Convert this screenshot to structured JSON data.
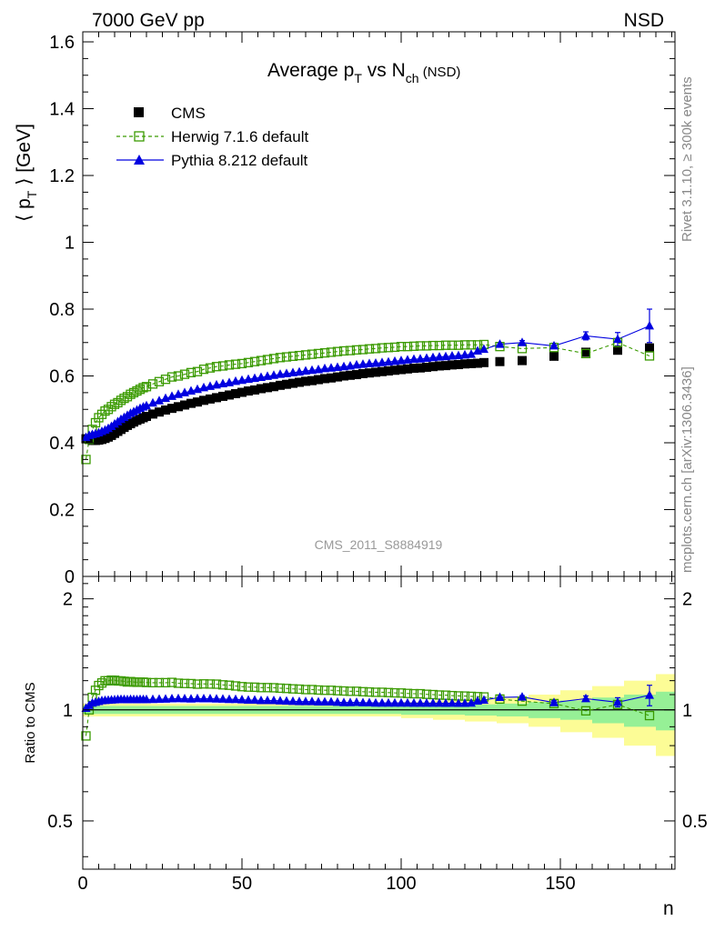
{
  "header": {
    "beam": "7000 GeV pp",
    "process": "NSD"
  },
  "side_labels": {
    "rivet": "Rivet 3.1.10, ≥ 300k events",
    "mcplots": "mcplots.cern.ch [arXiv:1306.3436]"
  },
  "analysis_id": "CMS_2011_S8884919",
  "colors": {
    "cms": "#000000",
    "herwig": "#3a9a00",
    "pythia": "#0000e0",
    "band_yellow": "#fcfc96",
    "band_green": "#96f096"
  },
  "chart_data": [
    {
      "type": "scatter",
      "title": "Average p_T vs N_ch (NSD)",
      "title_parts": {
        "pre": "Average p",
        "sub1": "T",
        "mid": " vs N",
        "sub2": "ch",
        "post": " (NSD)"
      },
      "ylabel": "⟨ p_T ⟩ [GeV]",
      "ylabel_parts": {
        "pre": "⟨ p",
        "sub": "T",
        "post": " ⟩ [GeV]"
      },
      "xlim": [
        0,
        186
      ],
      "ylim": [
        0,
        1.63
      ],
      "yticks": [
        0,
        0.2,
        0.4,
        0.6,
        0.8,
        1,
        1.2,
        1.4,
        1.6
      ],
      "ytick_labels": [
        "0",
        "0.2",
        "0.4",
        "0.6",
        "0.8",
        "1",
        "1.2",
        "1.4",
        "1.6"
      ],
      "legend": [
        "CMS",
        "Herwig 7.1.6 default",
        "Pythia 8.212 default"
      ],
      "series": [
        {
          "name": "CMS",
          "x": [
            1,
            2,
            3,
            4,
            5,
            6,
            7,
            8,
            9,
            10,
            11,
            12,
            13,
            14,
            15,
            16,
            17,
            18,
            19,
            20,
            22,
            24,
            26,
            28,
            30,
            32,
            34,
            36,
            38,
            40,
            42,
            44,
            46,
            48,
            50,
            52,
            54,
            56,
            58,
            60,
            62,
            64,
            66,
            68,
            70,
            72,
            74,
            76,
            78,
            80,
            82,
            84,
            86,
            88,
            90,
            92,
            94,
            96,
            98,
            100,
            102,
            104,
            106,
            108,
            110,
            112,
            114,
            116,
            118,
            120,
            122,
            124,
            126,
            131,
            138,
            148,
            158,
            168,
            178
          ],
          "y": [
            0.412,
            0.41,
            0.407,
            0.407,
            0.408,
            0.41,
            0.413,
            0.417,
            0.422,
            0.428,
            0.434,
            0.44,
            0.446,
            0.452,
            0.457,
            0.462,
            0.467,
            0.471,
            0.475,
            0.479,
            0.486,
            0.492,
            0.498,
            0.503,
            0.508,
            0.513,
            0.518,
            0.522,
            0.527,
            0.531,
            0.535,
            0.539,
            0.543,
            0.547,
            0.551,
            0.555,
            0.558,
            0.562,
            0.565,
            0.568,
            0.572,
            0.575,
            0.578,
            0.581,
            0.584,
            0.586,
            0.589,
            0.592,
            0.594,
            0.597,
            0.6,
            0.602,
            0.604,
            0.607,
            0.609,
            0.611,
            0.613,
            0.615,
            0.617,
            0.619,
            0.621,
            0.623,
            0.624,
            0.626,
            0.628,
            0.63,
            0.631,
            0.633,
            0.634,
            0.636,
            0.637,
            0.638,
            0.64,
            0.643,
            0.646,
            0.659,
            0.671,
            0.677,
            0.684
          ]
        },
        {
          "name": "Herwig 7.1.6 default",
          "x": [
            1,
            2,
            3,
            4,
            5,
            6,
            7,
            8,
            9,
            10,
            11,
            12,
            13,
            14,
            15,
            16,
            17,
            18,
            19,
            20,
            22,
            24,
            26,
            28,
            30,
            32,
            34,
            36,
            38,
            40,
            42,
            44,
            46,
            48,
            50,
            52,
            54,
            56,
            58,
            60,
            62,
            64,
            66,
            68,
            70,
            72,
            74,
            76,
            78,
            80,
            82,
            84,
            86,
            88,
            90,
            92,
            94,
            96,
            98,
            100,
            102,
            104,
            106,
            108,
            110,
            112,
            114,
            116,
            118,
            120,
            122,
            124,
            126,
            131,
            138,
            148,
            158,
            168,
            178
          ],
          "y": [
            0.35,
            0.41,
            0.44,
            0.46,
            0.475,
            0.485,
            0.495,
            0.5,
            0.508,
            0.515,
            0.52,
            0.527,
            0.533,
            0.538,
            0.545,
            0.55,
            0.555,
            0.56,
            0.565,
            0.568,
            0.576,
            0.583,
            0.59,
            0.597,
            0.6,
            0.605,
            0.61,
            0.613,
            0.62,
            0.624,
            0.628,
            0.63,
            0.633,
            0.635,
            0.637,
            0.64,
            0.643,
            0.646,
            0.649,
            0.652,
            0.655,
            0.657,
            0.659,
            0.661,
            0.663,
            0.665,
            0.667,
            0.669,
            0.671,
            0.673,
            0.675,
            0.676,
            0.678,
            0.679,
            0.681,
            0.682,
            0.684,
            0.685,
            0.686,
            0.688,
            0.688,
            0.689,
            0.69,
            0.69,
            0.691,
            0.691,
            0.692,
            0.692,
            0.692,
            0.693,
            0.693,
            0.693,
            0.694,
            0.688,
            0.682,
            0.685,
            0.667,
            0.7,
            0.66
          ]
        },
        {
          "name": "Pythia 8.212 default",
          "x": [
            1,
            2,
            3,
            4,
            5,
            6,
            7,
            8,
            9,
            10,
            11,
            12,
            13,
            14,
            15,
            16,
            17,
            18,
            19,
            20,
            22,
            24,
            26,
            28,
            30,
            32,
            34,
            36,
            38,
            40,
            42,
            44,
            46,
            48,
            50,
            52,
            54,
            56,
            58,
            60,
            62,
            64,
            66,
            68,
            70,
            72,
            74,
            76,
            78,
            80,
            82,
            84,
            86,
            88,
            90,
            92,
            94,
            96,
            98,
            100,
            102,
            104,
            106,
            108,
            110,
            112,
            114,
            116,
            118,
            120,
            122,
            124,
            126,
            131,
            138,
            148,
            158,
            168,
            178
          ],
          "y": [
            0.416,
            0.422,
            0.425,
            0.427,
            0.43,
            0.434,
            0.438,
            0.443,
            0.449,
            0.456,
            0.463,
            0.47,
            0.476,
            0.482,
            0.488,
            0.493,
            0.498,
            0.503,
            0.507,
            0.511,
            0.519,
            0.526,
            0.533,
            0.539,
            0.545,
            0.55,
            0.555,
            0.56,
            0.565,
            0.569,
            0.573,
            0.577,
            0.58,
            0.584,
            0.587,
            0.59,
            0.593,
            0.596,
            0.599,
            0.602,
            0.605,
            0.607,
            0.61,
            0.612,
            0.615,
            0.617,
            0.619,
            0.622,
            0.624,
            0.626,
            0.628,
            0.63,
            0.633,
            0.635,
            0.637,
            0.638,
            0.64,
            0.642,
            0.644,
            0.646,
            0.648,
            0.65,
            0.651,
            0.653,
            0.655,
            0.657,
            0.658,
            0.66,
            0.661,
            0.663,
            0.665,
            0.675,
            0.68,
            0.695,
            0.7,
            0.69,
            0.72,
            0.71,
            0.75
          ],
          "yerr": [
            0,
            0,
            0,
            0,
            0,
            0,
            0,
            0,
            0,
            0,
            0,
            0,
            0,
            0,
            0,
            0,
            0,
            0,
            0,
            0,
            0,
            0,
            0,
            0,
            0,
            0,
            0,
            0,
            0,
            0,
            0,
            0,
            0,
            0,
            0,
            0,
            0,
            0,
            0,
            0,
            0,
            0,
            0,
            0,
            0,
            0,
            0,
            0,
            0,
            0,
            0,
            0,
            0,
            0,
            0,
            0,
            0,
            0,
            0,
            0,
            0,
            0,
            0,
            0,
            0,
            0,
            0,
            0,
            0,
            0,
            0,
            0,
            0,
            0.004,
            0.006,
            0.008,
            0.012,
            0.02,
            0.05
          ]
        }
      ]
    },
    {
      "type": "scatter",
      "ylabel": "Ratio to CMS",
      "xlabel": "n",
      "xlim": [
        0,
        186
      ],
      "ylim": [
        0.37,
        2.3
      ],
      "yscale": "log",
      "xticks": [
        0,
        50,
        100,
        150
      ],
      "xtick_labels": [
        "0",
        "50",
        "100",
        "150"
      ],
      "yticks": [
        0.5,
        1,
        2
      ],
      "ytick_labels": [
        "0.5",
        "1",
        "2"
      ],
      "band_edges": [
        0,
        100,
        110,
        120,
        130,
        140,
        150,
        160,
        170,
        180,
        186
      ],
      "band_green": [
        0.025,
        0.03,
        0.03,
        0.035,
        0.04,
        0.05,
        0.06,
        0.08,
        0.1,
        0.12
      ],
      "band_yellow": [
        0.04,
        0.05,
        0.06,
        0.07,
        0.08,
        0.1,
        0.13,
        0.16,
        0.2,
        0.25
      ],
      "series": [
        {
          "name": "Herwig 7.1.6 default",
          "x": [
            1,
            2,
            3,
            4,
            5,
            6,
            7,
            8,
            9,
            10,
            11,
            12,
            13,
            14,
            15,
            16,
            17,
            18,
            19,
            20,
            22,
            24,
            26,
            28,
            30,
            32,
            34,
            36,
            38,
            40,
            42,
            44,
            46,
            48,
            50,
            52,
            54,
            56,
            58,
            60,
            62,
            64,
            66,
            68,
            70,
            72,
            74,
            76,
            78,
            80,
            82,
            84,
            86,
            88,
            90,
            92,
            94,
            96,
            98,
            100,
            102,
            104,
            106,
            108,
            110,
            112,
            114,
            116,
            118,
            120,
            122,
            124,
            126,
            131,
            138,
            148,
            158,
            168,
            178
          ],
          "y": [
            0.85,
            1.0,
            1.081,
            1.13,
            1.164,
            1.183,
            1.199,
            1.199,
            1.204,
            1.203,
            1.198,
            1.198,
            1.195,
            1.19,
            1.193,
            1.19,
            1.188,
            1.189,
            1.189,
            1.186,
            1.185,
            1.185,
            1.185,
            1.187,
            1.181,
            1.179,
            1.178,
            1.174,
            1.176,
            1.175,
            1.174,
            1.169,
            1.166,
            1.161,
            1.156,
            1.153,
            1.152,
            1.149,
            1.149,
            1.148,
            1.145,
            1.143,
            1.14,
            1.138,
            1.135,
            1.135,
            1.132,
            1.13,
            1.13,
            1.127,
            1.125,
            1.123,
            1.123,
            1.12,
            1.118,
            1.116,
            1.116,
            1.114,
            1.112,
            1.111,
            1.108,
            1.106,
            1.106,
            1.102,
            1.1,
            1.097,
            1.096,
            1.093,
            1.091,
            1.09,
            1.088,
            1.086,
            1.084,
            1.07,
            1.056,
            1.04,
            0.994,
            1.034,
            0.965
          ]
        },
        {
          "name": "Pythia 8.212 default",
          "x": [
            1,
            2,
            3,
            4,
            5,
            6,
            7,
            8,
            9,
            10,
            11,
            12,
            13,
            14,
            15,
            16,
            17,
            18,
            19,
            20,
            22,
            24,
            26,
            28,
            30,
            32,
            34,
            36,
            38,
            40,
            42,
            44,
            46,
            48,
            50,
            52,
            54,
            56,
            58,
            60,
            62,
            64,
            66,
            68,
            70,
            72,
            74,
            76,
            78,
            80,
            82,
            84,
            86,
            88,
            90,
            92,
            94,
            96,
            98,
            100,
            102,
            104,
            106,
            108,
            110,
            112,
            114,
            116,
            118,
            120,
            122,
            124,
            126,
            131,
            138,
            148,
            158,
            168,
            178
          ],
          "y": [
            1.01,
            1.029,
            1.044,
            1.049,
            1.054,
            1.059,
            1.061,
            1.062,
            1.064,
            1.065,
            1.067,
            1.068,
            1.067,
            1.066,
            1.068,
            1.067,
            1.066,
            1.068,
            1.067,
            1.067,
            1.068,
            1.069,
            1.07,
            1.072,
            1.073,
            1.072,
            1.071,
            1.073,
            1.072,
            1.072,
            1.071,
            1.07,
            1.068,
            1.068,
            1.065,
            1.063,
            1.063,
            1.06,
            1.06,
            1.06,
            1.058,
            1.056,
            1.055,
            1.053,
            1.053,
            1.053,
            1.051,
            1.051,
            1.051,
            1.049,
            1.047,
            1.047,
            1.048,
            1.046,
            1.046,
            1.044,
            1.044,
            1.044,
            1.044,
            1.044,
            1.044,
            1.043,
            1.043,
            1.043,
            1.043,
            1.043,
            1.042,
            1.043,
            1.042,
            1.042,
            1.044,
            1.057,
            1.063,
            1.081,
            1.084,
            1.047,
            1.073,
            1.049,
            1.096
          ],
          "yerr": [
            0,
            0,
            0,
            0,
            0,
            0,
            0,
            0,
            0,
            0,
            0,
            0,
            0,
            0,
            0,
            0,
            0,
            0,
            0,
            0,
            0,
            0,
            0,
            0,
            0,
            0,
            0,
            0,
            0,
            0,
            0,
            0,
            0,
            0,
            0,
            0,
            0,
            0,
            0,
            0,
            0,
            0,
            0,
            0,
            0,
            0,
            0,
            0,
            0,
            0,
            0,
            0,
            0,
            0,
            0,
            0,
            0,
            0,
            0,
            0,
            0,
            0,
            0,
            0,
            0,
            0,
            0,
            0,
            0,
            0,
            0,
            0,
            0,
            0.006,
            0.009,
            0.012,
            0.018,
            0.03,
            0.07
          ]
        }
      ]
    }
  ]
}
